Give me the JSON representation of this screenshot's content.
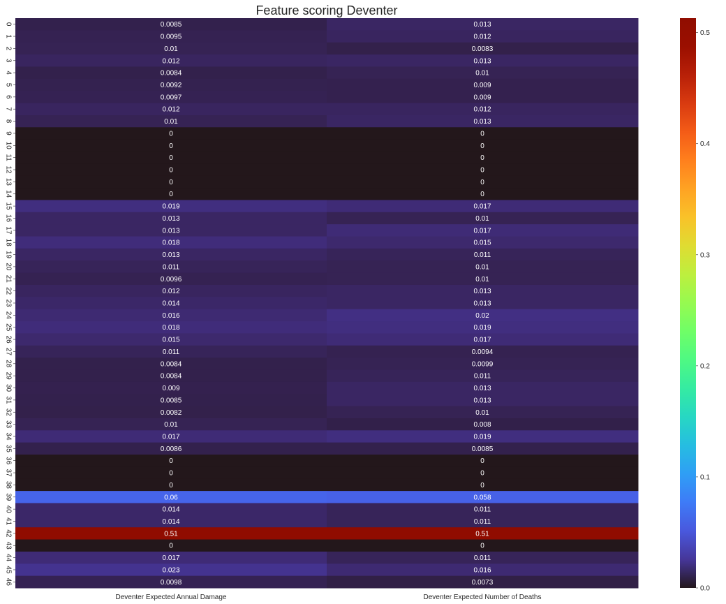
{
  "chart_data": {
    "type": "heatmap",
    "title": "Feature scoring Deventer",
    "columns": [
      "Deventer Expected Annual Damage",
      "Deventer Expected Number of Deaths"
    ],
    "rows": [
      "0",
      "1",
      "2",
      "3",
      "4",
      "5",
      "6",
      "7",
      "8",
      "9",
      "10",
      "11",
      "12",
      "13",
      "14",
      "15",
      "16",
      "17",
      "18",
      "19",
      "20",
      "21",
      "22",
      "23",
      "24",
      "25",
      "26",
      "27",
      "28",
      "29",
      "30",
      "31",
      "32",
      "33",
      "34",
      "35",
      "36",
      "37",
      "38",
      "39",
      "40",
      "41",
      "42",
      "43",
      "44",
      "45",
      "46"
    ],
    "values": [
      [
        0.0085,
        0.013
      ],
      [
        0.0095,
        0.012
      ],
      [
        0.01,
        0.0083
      ],
      [
        0.012,
        0.013
      ],
      [
        0.0084,
        0.01
      ],
      [
        0.0092,
        0.009
      ],
      [
        0.0097,
        0.009
      ],
      [
        0.012,
        0.012
      ],
      [
        0.01,
        0.013
      ],
      [
        0,
        0
      ],
      [
        0,
        0
      ],
      [
        0,
        0
      ],
      [
        0,
        0
      ],
      [
        0,
        0
      ],
      [
        0,
        0
      ],
      [
        0.019,
        0.017
      ],
      [
        0.013,
        0.01
      ],
      [
        0.013,
        0.017
      ],
      [
        0.018,
        0.015
      ],
      [
        0.013,
        0.011
      ],
      [
        0.011,
        0.01
      ],
      [
        0.0096,
        0.01
      ],
      [
        0.012,
        0.013
      ],
      [
        0.014,
        0.013
      ],
      [
        0.016,
        0.02
      ],
      [
        0.018,
        0.019
      ],
      [
        0.015,
        0.017
      ],
      [
        0.011,
        0.0094
      ],
      [
        0.0084,
        0.0099
      ],
      [
        0.0084,
        0.011
      ],
      [
        0.009,
        0.013
      ],
      [
        0.0085,
        0.013
      ],
      [
        0.0082,
        0.01
      ],
      [
        0.01,
        0.008
      ],
      [
        0.017,
        0.019
      ],
      [
        0.0086,
        0.0085
      ],
      [
        0,
        0
      ],
      [
        0,
        0
      ],
      [
        0,
        0
      ],
      [
        0.06,
        0.058
      ],
      [
        0.014,
        0.011
      ],
      [
        0.014,
        0.011
      ],
      [
        0.51,
        0.51
      ],
      [
        0,
        0
      ],
      [
        0.017,
        0.011
      ],
      [
        0.023,
        0.016
      ],
      [
        0.0098,
        0.0073
      ]
    ],
    "colormap": "turbo",
    "vmin": 0,
    "vmax": 0.513,
    "colorbar_ticks": [
      "0.0",
      "0.1",
      "0.2",
      "0.3",
      "0.4",
      "0.5"
    ],
    "colorbar_tick_values": [
      0,
      0.1,
      0.2,
      0.3,
      0.4,
      0.5
    ],
    "annotation_color": "#ffffff"
  }
}
